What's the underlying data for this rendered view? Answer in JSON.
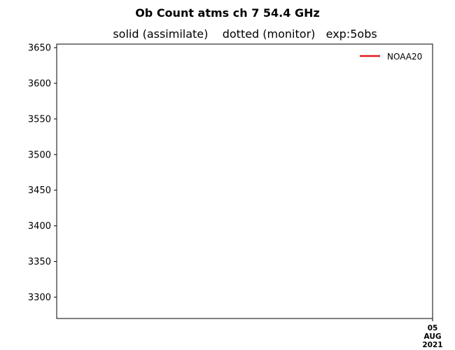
{
  "chart_data": {
    "type": "line",
    "title": "Ob Count atms ch 7 54.4 GHz",
    "subtitle": "solid (assimilate)    dotted (monitor)   exp:5obs",
    "xlabel": "",
    "ylabel": "",
    "ylim": [
      3270,
      3655
    ],
    "yticks": [
      3300,
      3350,
      3400,
      3450,
      3500,
      3550,
      3600,
      3650
    ],
    "xticks": [
      {
        "lines": [
          "05",
          "AUG",
          "2021"
        ]
      }
    ],
    "legend": {
      "position": "top-right"
    },
    "grid": false,
    "series": [
      {
        "name": "NOAA20",
        "color": "#e41a1c",
        "style": "solid",
        "values": []
      }
    ]
  }
}
